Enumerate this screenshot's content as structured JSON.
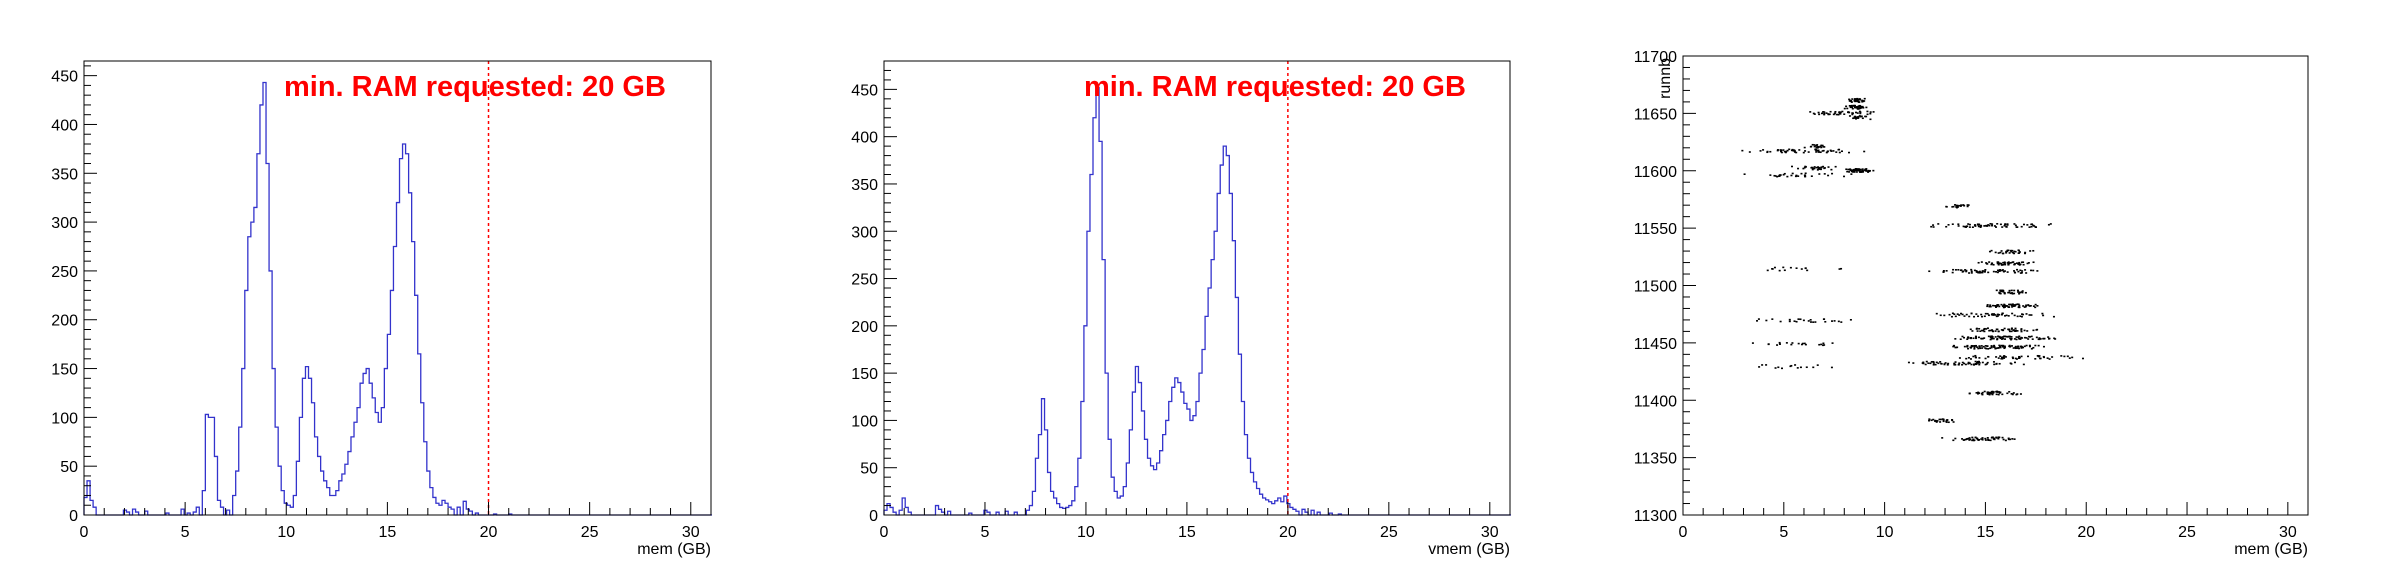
{
  "colors": {
    "histogram": "#3333cc",
    "annotation": "#ff0000",
    "axis": "#000000",
    "points": "#000000"
  },
  "chart_data": [
    {
      "type": "histogram",
      "annotation": "min. RAM requested: 20 GB",
      "xlabel": "mem (GB)",
      "ylabel": "",
      "xlim": [
        0,
        31
      ],
      "ylim": [
        0,
        465
      ],
      "x_ticks": [
        "0",
        "5",
        "10",
        "15",
        "20",
        "25",
        "30"
      ],
      "y_ticks": [
        "0",
        "50",
        "100",
        "150",
        "200",
        "250",
        "300",
        "350",
        "400",
        "450"
      ],
      "threshold_x": 20,
      "bin_width": 0.15,
      "bins": [
        [
          0.0,
          18
        ],
        [
          0.15,
          35
        ],
        [
          0.3,
          15
        ],
        [
          0.45,
          8
        ],
        [
          2.0,
          5
        ],
        [
          2.15,
          3
        ],
        [
          2.4,
          6
        ],
        [
          2.6,
          3
        ],
        [
          3.0,
          4
        ],
        [
          4.0,
          2
        ],
        [
          4.8,
          6
        ],
        [
          5.1,
          2
        ],
        [
          5.4,
          3
        ],
        [
          5.6,
          8
        ],
        [
          5.8,
          25
        ],
        [
          5.95,
          103
        ],
        [
          6.1,
          100
        ],
        [
          6.25,
          100
        ],
        [
          6.4,
          60
        ],
        [
          6.55,
          15
        ],
        [
          6.7,
          8
        ],
        [
          7.0,
          5
        ],
        [
          7.3,
          20
        ],
        [
          7.45,
          45
        ],
        [
          7.6,
          90
        ],
        [
          7.75,
          150
        ],
        [
          7.9,
          230
        ],
        [
          8.05,
          285
        ],
        [
          8.2,
          300
        ],
        [
          8.35,
          315
        ],
        [
          8.5,
          370
        ],
        [
          8.65,
          420
        ],
        [
          8.8,
          443
        ],
        [
          8.95,
          360
        ],
        [
          9.1,
          250
        ],
        [
          9.25,
          150
        ],
        [
          9.4,
          90
        ],
        [
          9.55,
          50
        ],
        [
          9.7,
          25
        ],
        [
          9.85,
          12
        ],
        [
          10.0,
          10
        ],
        [
          10.15,
          8
        ],
        [
          10.3,
          20
        ],
        [
          10.45,
          55
        ],
        [
          10.6,
          100
        ],
        [
          10.75,
          140
        ],
        [
          10.9,
          152
        ],
        [
          11.05,
          140
        ],
        [
          11.2,
          115
        ],
        [
          11.35,
          80
        ],
        [
          11.5,
          60
        ],
        [
          11.65,
          45
        ],
        [
          11.8,
          35
        ],
        [
          11.95,
          28
        ],
        [
          12.1,
          20
        ],
        [
          12.25,
          20
        ],
        [
          12.4,
          25
        ],
        [
          12.55,
          35
        ],
        [
          12.7,
          42
        ],
        [
          12.85,
          52
        ],
        [
          13.0,
          65
        ],
        [
          13.15,
          80
        ],
        [
          13.3,
          95
        ],
        [
          13.45,
          110
        ],
        [
          13.6,
          135
        ],
        [
          13.75,
          145
        ],
        [
          13.9,
          150
        ],
        [
          14.05,
          135
        ],
        [
          14.2,
          120
        ],
        [
          14.35,
          105
        ],
        [
          14.5,
          95
        ],
        [
          14.65,
          110
        ],
        [
          14.8,
          150
        ],
        [
          14.95,
          185
        ],
        [
          15.1,
          230
        ],
        [
          15.25,
          275
        ],
        [
          15.4,
          320
        ],
        [
          15.55,
          365
        ],
        [
          15.7,
          380
        ],
        [
          15.85,
          370
        ],
        [
          16.0,
          330
        ],
        [
          16.15,
          280
        ],
        [
          16.3,
          225
        ],
        [
          16.45,
          165
        ],
        [
          16.6,
          115
        ],
        [
          16.75,
          75
        ],
        [
          16.9,
          45
        ],
        [
          17.05,
          28
        ],
        [
          17.2,
          18
        ],
        [
          17.35,
          12
        ],
        [
          17.5,
          10
        ],
        [
          17.7,
          15
        ],
        [
          17.85,
          12
        ],
        [
          18.0,
          8
        ],
        [
          18.2,
          6
        ],
        [
          18.5,
          8
        ],
        [
          18.7,
          14
        ],
        [
          18.85,
          6
        ],
        [
          19.0,
          4
        ],
        [
          19.3,
          2
        ],
        [
          20.2,
          1
        ],
        [
          21.0,
          1
        ]
      ]
    },
    {
      "type": "histogram",
      "annotation": "min. RAM requested: 20 GB",
      "xlabel": "vmem (GB)",
      "ylabel": "",
      "xlim": [
        0,
        31
      ],
      "ylim": [
        0,
        480
      ],
      "x_ticks": [
        "0",
        "5",
        "10",
        "15",
        "20",
        "25",
        "30"
      ],
      "y_ticks": [
        "0",
        "50",
        "100",
        "150",
        "200",
        "250",
        "300",
        "350",
        "400",
        "450"
      ],
      "threshold_x": 20,
      "bin_width": 0.15,
      "bins": [
        [
          0.0,
          5
        ],
        [
          0.15,
          12
        ],
        [
          0.3,
          8
        ],
        [
          0.45,
          3
        ],
        [
          0.7,
          5
        ],
        [
          0.85,
          18
        ],
        [
          1.0,
          8
        ],
        [
          1.2,
          3
        ],
        [
          2.5,
          10
        ],
        [
          2.65,
          6
        ],
        [
          2.8,
          3
        ],
        [
          3.2,
          4
        ],
        [
          4.2,
          2
        ],
        [
          5.0,
          5
        ],
        [
          5.15,
          3
        ],
        [
          5.5,
          3
        ],
        [
          6.0,
          4
        ],
        [
          6.5,
          3
        ],
        [
          7.0,
          5
        ],
        [
          7.2,
          10
        ],
        [
          7.35,
          25
        ],
        [
          7.5,
          60
        ],
        [
          7.65,
          85
        ],
        [
          7.8,
          123
        ],
        [
          7.95,
          90
        ],
        [
          8.1,
          45
        ],
        [
          8.25,
          25
        ],
        [
          8.4,
          18
        ],
        [
          8.55,
          12
        ],
        [
          8.7,
          8
        ],
        [
          8.85,
          7
        ],
        [
          9.0,
          8
        ],
        [
          9.15,
          10
        ],
        [
          9.3,
          15
        ],
        [
          9.45,
          30
        ],
        [
          9.6,
          60
        ],
        [
          9.75,
          120
        ],
        [
          9.9,
          200
        ],
        [
          10.05,
          300
        ],
        [
          10.2,
          360
        ],
        [
          10.35,
          420
        ],
        [
          10.5,
          452
        ],
        [
          10.65,
          395
        ],
        [
          10.8,
          270
        ],
        [
          10.95,
          150
        ],
        [
          11.1,
          80
        ],
        [
          11.25,
          40
        ],
        [
          11.4,
          25
        ],
        [
          11.55,
          18
        ],
        [
          11.7,
          20
        ],
        [
          11.85,
          30
        ],
        [
          12.0,
          55
        ],
        [
          12.15,
          90
        ],
        [
          12.3,
          130
        ],
        [
          12.45,
          157
        ],
        [
          12.6,
          140
        ],
        [
          12.75,
          110
        ],
        [
          12.9,
          80
        ],
        [
          13.05,
          60
        ],
        [
          13.2,
          52
        ],
        [
          13.35,
          48
        ],
        [
          13.5,
          55
        ],
        [
          13.65,
          68
        ],
        [
          13.8,
          85
        ],
        [
          13.95,
          100
        ],
        [
          14.1,
          120
        ],
        [
          14.25,
          135
        ],
        [
          14.4,
          145
        ],
        [
          14.55,
          140
        ],
        [
          14.7,
          130
        ],
        [
          14.85,
          118
        ],
        [
          15.0,
          112
        ],
        [
          15.15,
          100
        ],
        [
          15.3,
          105
        ],
        [
          15.45,
          120
        ],
        [
          15.6,
          150
        ],
        [
          15.75,
          175
        ],
        [
          15.9,
          210
        ],
        [
          16.05,
          240
        ],
        [
          16.2,
          270
        ],
        [
          16.35,
          300
        ],
        [
          16.5,
          340
        ],
        [
          16.65,
          370
        ],
        [
          16.8,
          390
        ],
        [
          16.95,
          380
        ],
        [
          17.1,
          340
        ],
        [
          17.25,
          290
        ],
        [
          17.4,
          230
        ],
        [
          17.55,
          170
        ],
        [
          17.7,
          120
        ],
        [
          17.85,
          85
        ],
        [
          18.0,
          60
        ],
        [
          18.15,
          45
        ],
        [
          18.3,
          35
        ],
        [
          18.45,
          28
        ],
        [
          18.6,
          22
        ],
        [
          18.75,
          18
        ],
        [
          18.9,
          16
        ],
        [
          19.05,
          14
        ],
        [
          19.2,
          12
        ],
        [
          19.35,
          15
        ],
        [
          19.5,
          18
        ],
        [
          19.65,
          14
        ],
        [
          19.8,
          20
        ],
        [
          19.95,
          12
        ],
        [
          20.1,
          8
        ],
        [
          20.25,
          6
        ],
        [
          20.4,
          4
        ],
        [
          20.7,
          6
        ],
        [
          20.85,
          3
        ],
        [
          21.2,
          5
        ],
        [
          21.5,
          3
        ],
        [
          22.0,
          2
        ],
        [
          22.5,
          1
        ]
      ]
    },
    {
      "type": "scatter",
      "xlabel": "mem (GB)",
      "ylabel": "runnb",
      "xlim": [
        0,
        31
      ],
      "ylim": [
        11300,
        11700
      ],
      "x_ticks": [
        "0",
        "5",
        "10",
        "15",
        "20",
        "25",
        "30"
      ],
      "y_ticks": [
        "11300",
        "11350",
        "11400",
        "11450",
        "11500",
        "11550",
        "11600",
        "11650",
        "11700"
      ],
      "clusters": [
        {
          "run": 11662,
          "x_from": 7.8,
          "x_to": 9.3,
          "n": 40
        },
        {
          "run": 11656,
          "x_from": 7.8,
          "x_to": 9.3,
          "n": 40
        },
        {
          "run": 11651,
          "x_from": 5.5,
          "x_to": 10.2,
          "n": 45
        },
        {
          "run": 11647,
          "x_from": 8.0,
          "x_to": 9.3,
          "n": 25
        },
        {
          "run": 11622,
          "x_from": 5.8,
          "x_to": 7.2,
          "n": 20
        },
        {
          "run": 11618,
          "x_from": 2.5,
          "x_to": 9.8,
          "n": 55
        },
        {
          "run": 11603,
          "x_from": 5.0,
          "x_to": 8.0,
          "n": 30
        },
        {
          "run": 11601,
          "x_from": 7.8,
          "x_to": 9.5,
          "n": 55
        },
        {
          "run": 11597,
          "x_from": 2.5,
          "x_to": 9.0,
          "n": 30
        },
        {
          "run": 11570,
          "x_from": 12.5,
          "x_to": 14.5,
          "n": 20
        },
        {
          "run": 11553,
          "x_from": 11.0,
          "x_to": 19.5,
          "n": 70
        },
        {
          "run": 11530,
          "x_from": 14.5,
          "x_to": 18.0,
          "n": 30
        },
        {
          "run": 11520,
          "x_from": 14.0,
          "x_to": 18.0,
          "n": 50
        },
        {
          "run": 11513,
          "x_from": 11.5,
          "x_to": 18.5,
          "n": 65
        },
        {
          "run": 11495,
          "x_from": 14.5,
          "x_to": 17.5,
          "n": 35
        },
        {
          "run": 11483,
          "x_from": 14.0,
          "x_to": 18.0,
          "n": 60
        },
        {
          "run": 11475,
          "x_from": 11.0,
          "x_to": 19.0,
          "n": 55
        },
        {
          "run": 11462,
          "x_from": 13.0,
          "x_to": 18.5,
          "n": 50
        },
        {
          "run": 11455,
          "x_from": 12.5,
          "x_to": 19.5,
          "n": 85
        },
        {
          "run": 11447,
          "x_from": 12.0,
          "x_to": 19.0,
          "n": 90
        },
        {
          "run": 11438,
          "x_from": 13.0,
          "x_to": 20.5,
          "n": 50
        },
        {
          "run": 11433,
          "x_from": 10.0,
          "x_to": 17.5,
          "n": 70
        },
        {
          "run": 11407,
          "x_from": 13.5,
          "x_to": 17.5,
          "n": 45
        },
        {
          "run": 11383,
          "x_from": 11.5,
          "x_to": 14.0,
          "n": 25
        },
        {
          "run": 11367,
          "x_from": 12.0,
          "x_to": 17.5,
          "n": 55
        },
        {
          "run": 11470,
          "x_from": 2.0,
          "x_to": 10.0,
          "n": 25
        },
        {
          "run": 11515,
          "x_from": 2.0,
          "x_to": 9.0,
          "n": 15
        },
        {
          "run": 11450,
          "x_from": 2.0,
          "x_to": 9.0,
          "n": 20
        },
        {
          "run": 11430,
          "x_from": 2.0,
          "x_to": 9.0,
          "n": 15
        }
      ]
    }
  ]
}
